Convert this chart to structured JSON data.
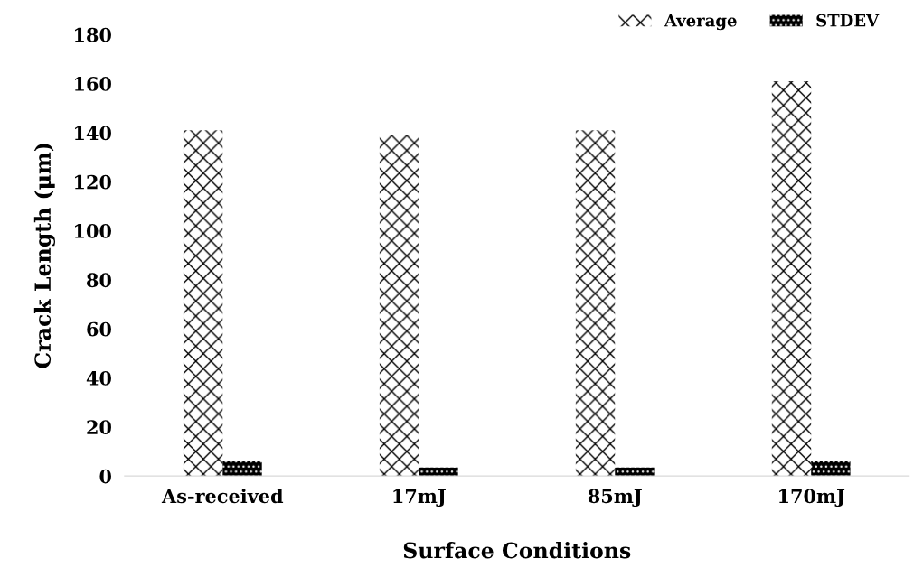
{
  "chart_data": {
    "type": "bar",
    "xlabel": "Surface Conditions",
    "ylabel": "Crack Length (μm)",
    "categories": [
      "As-received",
      "17mJ",
      "85mJ",
      "170mJ"
    ],
    "series": [
      {
        "name": "Average",
        "color": "#ffffff",
        "values": [
          141,
          139,
          141,
          161
        ]
      },
      {
        "name": "STDEV",
        "color": "#000000",
        "values": [
          6,
          3.5,
          3.5,
          6
        ]
      }
    ],
    "ylim": [
      0,
      180
    ],
    "yticks": [
      0,
      20,
      40,
      60,
      80,
      100,
      120,
      140,
      160,
      180
    ],
    "grid": false,
    "legend": "top right"
  }
}
